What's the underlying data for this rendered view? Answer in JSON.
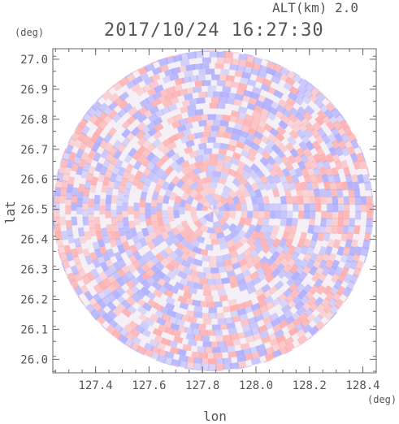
{
  "header": {
    "altitude_label": "ALT(km) 2.0",
    "timestamp": "2017/10/24 16:27:30"
  },
  "chart_data": {
    "type": "heatmap",
    "title": "2017/10/24 16:27:30",
    "xlabel": "lon",
    "ylabel": "lat",
    "x_unit": "(deg)",
    "y_unit": "(deg)",
    "xlim": [
      127.24,
      128.45
    ],
    "ylim": [
      25.955,
      27.035
    ],
    "x_ticks": [
      127.4,
      127.6,
      127.8,
      128.0,
      128.2,
      128.4
    ],
    "x_tick_labels": [
      "127.4",
      "127.6",
      "127.8",
      "128.0",
      "128.2",
      "128.4"
    ],
    "y_ticks": [
      26.0,
      26.1,
      26.2,
      26.3,
      26.4,
      26.5,
      26.6,
      26.7,
      26.8,
      26.9,
      27.0
    ],
    "y_tick_labels": [
      "26.0",
      "26.1",
      "26.2",
      "26.3",
      "26.4",
      "26.5",
      "26.6",
      "26.7",
      "26.8",
      "26.9",
      "27.0"
    ],
    "radar_center": {
      "lon": 127.84,
      "lat": 26.495
    },
    "coverage_radius_deg_lon": 0.6,
    "colors": {
      "positive": "#ffaaaa",
      "negative": "#aaaaff",
      "frame": "#666666"
    },
    "grid": false
  }
}
